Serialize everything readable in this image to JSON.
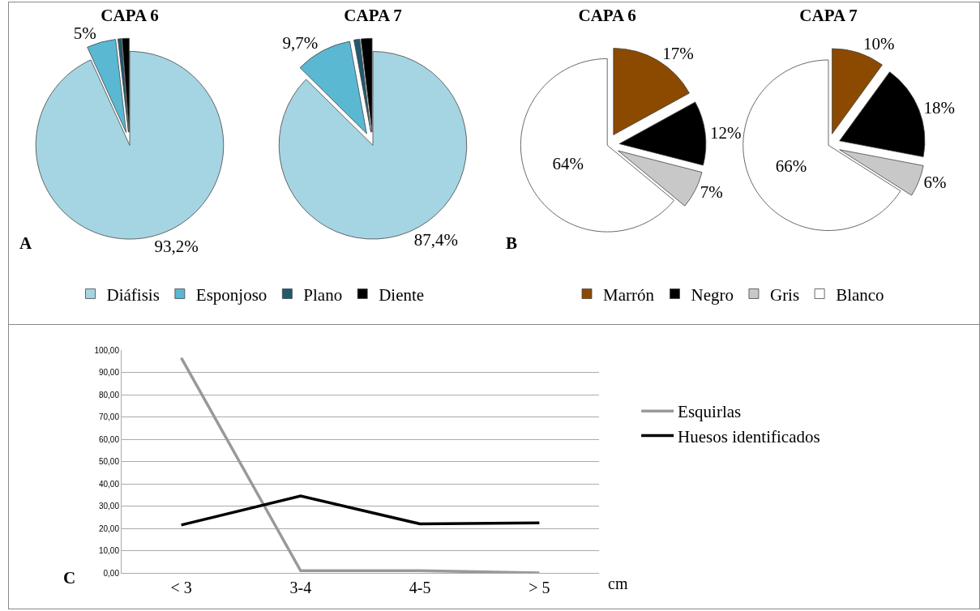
{
  "chart_data": [
    {
      "type": "pie",
      "title": "CAPA 6",
      "categories": [
        "Diáfisis",
        "Esponjoso",
        "Plano",
        "Diente"
      ],
      "values": [
        93.2,
        5,
        0.6,
        1.2
      ],
      "colors": [
        "#a5d5e3",
        "#5bb8d2",
        "#1f5a6e",
        "#000000"
      ],
      "value_labels": [
        "93,2%",
        "5%",
        null,
        null
      ],
      "legend": "bottom",
      "annotations": [
        "A"
      ]
    },
    {
      "type": "pie",
      "title": "CAPA 7",
      "categories": [
        null,
        null,
        null,
        null
      ],
      "values": [
        87.4,
        9.7,
        1,
        1.9
      ],
      "colors": [
        "#a5d5e3",
        "#5bb8d2",
        "#1f5a6e",
        "#000000"
      ],
      "value_labels": [
        "87,4%",
        "9,7%",
        null,
        null
      ]
    },
    {
      "type": "pie",
      "title": "CAPA 6",
      "categories": [
        "Marrón",
        "Negro",
        "Gris",
        "Blanco"
      ],
      "values": [
        17,
        12,
        7,
        64
      ],
      "colors": [
        "#8b4a00",
        "#000000",
        "#c8c8c8",
        "#ffffff"
      ],
      "value_labels": [
        "17%",
        "12%",
        "7%",
        "64%"
      ],
      "legend": "bottom",
      "annotations": [
        "B"
      ]
    },
    {
      "type": "pie",
      "title": "CAPA 7",
      "categories": [
        null,
        null,
        null,
        null
      ],
      "values": [
        10,
        18,
        6,
        66
      ],
      "colors": [
        "#8b4a00",
        "#000000",
        "#c8c8c8",
        "#ffffff"
      ],
      "value_labels": [
        "10%",
        "18%",
        "6%",
        "66%"
      ]
    },
    {
      "type": "line",
      "categories": [
        "< 3",
        "3-4",
        "4-5",
        "> 5"
      ],
      "xlabel": "cm",
      "series": [
        {
          "name": "Esquirlas",
          "color": "#999999",
          "values": [
            96.5,
            1,
            1,
            0
          ]
        },
        {
          "name": "Huesos identificados",
          "color": "#000000",
          "values": [
            21.5,
            34.5,
            22,
            22.5
          ]
        }
      ],
      "ylim": [
        0,
        100
      ],
      "yticks": [
        {
          "value": 0,
          "label": "0,00"
        },
        {
          "value": 10,
          "label": "10,00"
        },
        {
          "value": 20,
          "label": "20,00"
        },
        {
          "value": 30,
          "label": "30,00"
        },
        {
          "value": 40,
          "label": "40,00"
        },
        {
          "value": 50,
          "label": "50,00"
        },
        {
          "value": 60,
          "label": "60,00"
        },
        {
          "value": 70,
          "label": "70,00"
        },
        {
          "value": 80,
          "label": "80,00"
        },
        {
          "value": 90,
          "label": "90,00"
        },
        {
          "value": 100,
          "label": "100,00"
        }
      ],
      "grid": "y",
      "legend": "right",
      "marker": "none",
      "line_style": "solid",
      "annotations": [
        "C"
      ]
    }
  ]
}
